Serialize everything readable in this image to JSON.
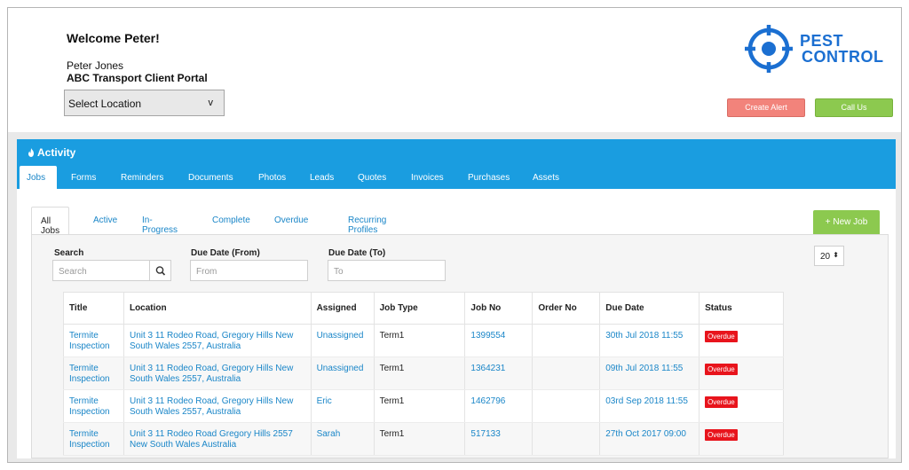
{
  "header": {
    "welcome": "Welcome Peter!",
    "user_name": "Peter Jones",
    "portal_name": "ABC Transport Client Portal",
    "location_select": {
      "value": "Select Location",
      "chevron": "v"
    },
    "logo": {
      "line1": "PEST",
      "line2": "CONTROL",
      "icon": "crosshair-icon",
      "color": "#1b6fd1"
    },
    "create_alert": "Create Alert",
    "call_us": "Call Us"
  },
  "activity": {
    "title": "Activity",
    "icon": "flame-icon",
    "accent": "#1a9de0",
    "tabs": [
      {
        "label": "Jobs",
        "active": true
      },
      {
        "label": "Forms"
      },
      {
        "label": "Reminders"
      },
      {
        "label": "Documents"
      },
      {
        "label": "Photos"
      },
      {
        "label": "Leads"
      },
      {
        "label": "Quotes"
      },
      {
        "label": "Invoices"
      },
      {
        "label": "Purchases"
      },
      {
        "label": "Assets"
      }
    ],
    "sub_tabs": [
      {
        "label": "All Jobs",
        "active": true
      },
      {
        "label": "Active"
      },
      {
        "label": "In-Progress"
      },
      {
        "label": "Complete"
      },
      {
        "label": "Overdue"
      },
      {
        "label": "Recurring Profiles"
      }
    ],
    "new_job": "+ New Job"
  },
  "filters": {
    "search_label": "Search",
    "search_placeholder": "Search",
    "search_icon": "search-icon",
    "due_from_label": "Due Date (From)",
    "due_from_placeholder": "From",
    "due_to_label": "Due Date (To)",
    "due_to_placeholder": "To",
    "page_size": "20",
    "page_size_arrow": "⬍"
  },
  "table": {
    "columns": [
      "Title",
      "Location",
      "Assigned",
      "Job Type",
      "Job No",
      "Order No",
      "Due Date",
      "Status"
    ],
    "rows": [
      {
        "title_l1": "Termite",
        "title_l2": "Inspection",
        "loc_l1": "Unit 3 11 Rodeo Road, Gregory Hills New",
        "loc_l2": "South Wales 2557, Australia",
        "assigned": "Unassigned",
        "job_type": "Term1",
        "job_no": "1399554",
        "order_no": "",
        "due_date": "30th Jul 2018 11:55",
        "status": "Overdue"
      },
      {
        "title_l1": "Termite",
        "title_l2": "Inspection",
        "loc_l1": "Unit 3 11 Rodeo Road, Gregory Hills New",
        "loc_l2": "South Wales 2557, Australia",
        "assigned": "Unassigned",
        "job_type": "Term1",
        "job_no": "1364231",
        "order_no": "",
        "due_date": "09th Jul 2018 11:55",
        "status": "Overdue"
      },
      {
        "title_l1": "Termite",
        "title_l2": "Inspection",
        "loc_l1": "Unit 3 11 Rodeo Road, Gregory Hills New",
        "loc_l2": "South Wales 2557, Australia",
        "assigned": "Eric",
        "job_type": "Term1",
        "job_no": "1462796",
        "order_no": "",
        "due_date": "03rd Sep 2018 11:55",
        "status": "Overdue"
      },
      {
        "title_l1": "Termite",
        "title_l2": "Inspection",
        "loc_l1": "Unit 3 11 Rodeo Road Gregory Hills 2557",
        "loc_l2": "New South Wales Australia",
        "assigned": "Sarah",
        "job_type": "Term1",
        "job_no": "517133",
        "order_no": "",
        "due_date": "27th Oct 2017 09:00",
        "status": "Overdue"
      }
    ],
    "status_color": "#e8141c"
  }
}
